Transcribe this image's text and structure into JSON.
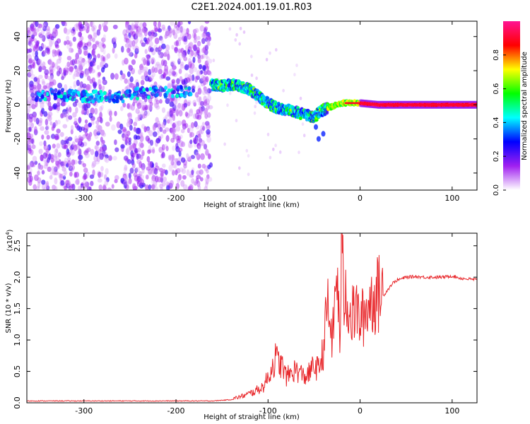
{
  "title": "C2E1.2024.001.19.01.R03",
  "chart_data": [
    {
      "type": "heatmap",
      "xlabel": "Height of straight line (km)",
      "ylabel": "Frequency (Hz)",
      "xlim": [
        -362,
        127
      ],
      "ylim": [
        -50,
        49
      ],
      "x_ticks": [
        -300,
        -200,
        -100,
        0,
        100
      ],
      "x_tick_labels": [
        "-300",
        "-200",
        "-100",
        "0",
        "100"
      ],
      "y_ticks": [
        -40,
        -20,
        0,
        20,
        40
      ],
      "y_tick_labels": [
        "-40",
        "-20",
        "0",
        "20",
        "40"
      ],
      "colorbar": {
        "label": "Normalized spectral amplitude",
        "range": [
          0,
          1
        ],
        "ticks": [
          0.0,
          0.2,
          0.4,
          0.6,
          0.8
        ],
        "tick_labels": [
          "0.0",
          "0.2",
          "0.4",
          "0.6",
          "0.8"
        ],
        "colors": [
          "#ffffff",
          "#a020f0",
          "#0000ff",
          "#00ffff",
          "#00ff00",
          "#ffff00",
          "#ff0000",
          "#ff1493"
        ]
      },
      "features": {
        "noise_region_x": [
          -362,
          -162
        ],
        "noise_gap_x": [
          -275,
          -258
        ],
        "early_band": [
          [
            -352,
            5
          ],
          [
            -340,
            6
          ],
          [
            -325,
            6
          ],
          [
            -310,
            5
          ],
          [
            -300,
            5
          ],
          [
            -285,
            5
          ],
          [
            -270,
            5
          ],
          [
            -262,
            4
          ],
          [
            -240,
            7
          ],
          [
            -200,
            8
          ],
          [
            -180,
            8
          ]
        ],
        "signal_trace": [
          [
            -162,
            12
          ],
          [
            -150,
            11
          ],
          [
            -140,
            12
          ],
          [
            -130,
            11
          ],
          [
            -120,
            9
          ],
          [
            -110,
            5
          ],
          [
            -100,
            1
          ],
          [
            -90,
            -2
          ],
          [
            -80,
            -3
          ],
          [
            -70,
            -4
          ],
          [
            -60,
            -6
          ],
          [
            -50,
            -7
          ],
          [
            -40,
            -3
          ],
          [
            -30,
            -1
          ],
          [
            -20,
            1
          ],
          [
            -10,
            1
          ],
          [
            0,
            1
          ],
          [
            20,
            0
          ],
          [
            60,
            0
          ],
          [
            100,
            0
          ],
          [
            127,
            0
          ]
        ],
        "tail_points": [
          [
            -45,
            -20
          ],
          [
            -40,
            -17
          ],
          [
            -48,
            -13
          ]
        ],
        "grid": false
      }
    },
    {
      "type": "line",
      "xlabel": "Height of straight line (km)",
      "ylabel": "SNR (10 * v/v)",
      "y_multiplier": "(x10",
      "y_multiplier_exp": "4",
      "xlim": [
        -362,
        127
      ],
      "ylim": [
        0,
        2.7
      ],
      "x_ticks": [
        -300,
        -200,
        -100,
        0,
        100
      ],
      "x_tick_labels": [
        "-300",
        "-200",
        "-100",
        "0",
        "100"
      ],
      "y_ticks": [
        0.0,
        0.5,
        1.0,
        1.5,
        2.0,
        2.5
      ],
      "y_tick_labels": [
        "0.0",
        "0.5",
        "1.0",
        "1.5",
        "2.0",
        "2.5"
      ],
      "series": [
        {
          "color": "#e8262a",
          "x": [
            -362,
            -300,
            -200,
            -160,
            -140,
            -125,
            -115,
            -105,
            -98,
            -92,
            -85,
            -80,
            -75,
            -70,
            -65,
            -60,
            -55,
            -50,
            -45,
            -40,
            -35,
            -30,
            -25,
            -22,
            -20,
            -18,
            -15,
            -10,
            -5,
            0,
            5,
            10,
            15,
            20,
            25,
            30,
            35,
            40,
            50,
            60,
            70,
            80,
            90,
            100,
            110,
            127
          ],
          "y": [
            0.03,
            0.03,
            0.03,
            0.03,
            0.05,
            0.1,
            0.15,
            0.22,
            0.4,
            0.6,
            0.5,
            0.35,
            0.4,
            0.45,
            0.4,
            0.35,
            0.4,
            0.5,
            0.45,
            0.7,
            1.4,
            0.9,
            2.0,
            0.8,
            2.7,
            1.5,
            1.7,
            1.2,
            1.4,
            1.2,
            1.3,
            1.5,
            1.55,
            1.6,
            1.7,
            1.8,
            1.9,
            1.95,
            2.0,
            2.01,
            2.0,
            2.0,
            2.0,
            2.02,
            1.98,
            1.96
          ]
        }
      ],
      "grid": false
    }
  ]
}
